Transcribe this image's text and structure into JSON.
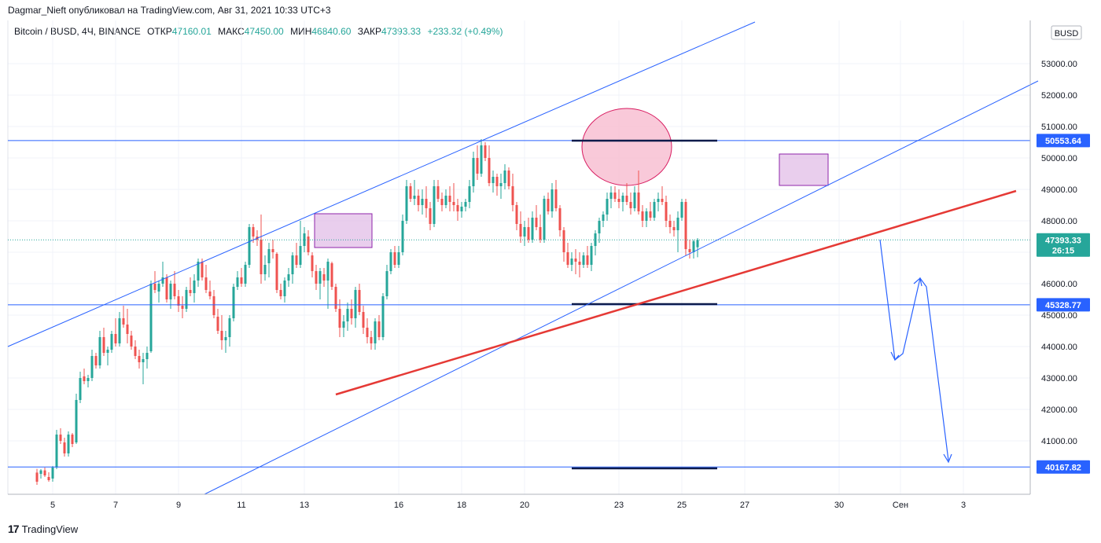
{
  "header": {
    "published_line": "Dagmar_Nieft опубликовал на TradingView.com, Авг 31, 2021 10:33 UTC+3"
  },
  "legend": {
    "symbol": "Bitcoin / BUSD, 4Ч, BINANCE",
    "open_label": "ОТКР",
    "open_value": "47160.01",
    "high_label": "МАКС",
    "high_value": "47450.00",
    "low_label": "МИН",
    "low_value": "46840.60",
    "close_label": "ЗАКР",
    "close_value": "47393.33",
    "change": "+233.32 (+0.49%)"
  },
  "currency_badge": "BUSD",
  "footer": {
    "logo_text": "TradingView"
  },
  "colors": {
    "up": "#26a69a",
    "down": "#ef5350",
    "blue": "#2962ff",
    "red_line": "#e53935",
    "pink": "#f8bbd0",
    "violet": "#e1bee7"
  },
  "chart_data": {
    "type": "candlestick",
    "y_axis_labels": [
      "53000.00",
      "52000.00",
      "51000.00",
      "50000.00",
      "49000.00",
      "48000.00",
      "47000.00",
      "46000.00",
      "45000.00",
      "44000.00",
      "43000.00",
      "42000.00",
      "41000.00"
    ],
    "ylim": [
      39700,
      54000
    ],
    "x_axis_labels": [
      {
        "label": "5",
        "x": 67
      },
      {
        "label": "7",
        "x": 147
      },
      {
        "label": "9",
        "x": 227
      },
      {
        "label": "11",
        "x": 307
      },
      {
        "label": "13",
        "x": 387
      },
      {
        "label": "16",
        "x": 507
      },
      {
        "label": "18",
        "x": 587
      },
      {
        "label": "20",
        "x": 667
      },
      {
        "label": "23",
        "x": 787
      },
      {
        "label": "25",
        "x": 867
      },
      {
        "label": "27",
        "x": 947
      },
      {
        "label": "30",
        "x": 1067
      },
      {
        "label": "Сен",
        "x": 1145
      },
      {
        "label": "3",
        "x": 1225
      }
    ],
    "price_tags": [
      {
        "value": "50553.64",
        "price": 50553.64,
        "color": "#2962ff"
      },
      {
        "value": "47393.33",
        "price": 47393.33,
        "color": "#26a69a",
        "sub": "26:15"
      },
      {
        "value": "45328.77",
        "price": 45328.77,
        "color": "#2962ff"
      },
      {
        "value": "40167.82",
        "price": 40167.82,
        "color": "#2962ff"
      }
    ],
    "horizontal_levels": [
      50553.64,
      45328.77,
      40167.82
    ],
    "current_price": 47393.33,
    "candles": [
      [
        39990,
        40110,
        39600,
        39700
      ],
      [
        39950,
        40100,
        39800,
        40060
      ],
      [
        40060,
        40150,
        39850,
        39900
      ],
      [
        39850,
        40000,
        39700,
        39750
      ],
      [
        39800,
        40200,
        39700,
        40150
      ],
      [
        40150,
        41350,
        40100,
        41200
      ],
      [
        41200,
        41400,
        40900,
        41000
      ],
      [
        40950,
        41100,
        40500,
        40600
      ],
      [
        40600,
        41300,
        40500,
        41200
      ],
      [
        41200,
        41250,
        40800,
        40900
      ],
      [
        40950,
        42500,
        40900,
        42300
      ],
      [
        42300,
        43200,
        42200,
        43000
      ],
      [
        43050,
        43300,
        42800,
        42900
      ],
      [
        42900,
        43100,
        42700,
        43000
      ],
      [
        43000,
        43900,
        42900,
        43700
      ],
      [
        43700,
        43800,
        43300,
        43400
      ],
      [
        43400,
        44500,
        43300,
        44300
      ],
      [
        44300,
        44600,
        43700,
        43800
      ],
      [
        43800,
        44000,
        43400,
        43900
      ],
      [
        43900,
        44500,
        43800,
        44400
      ],
      [
        44400,
        44900,
        44000,
        44100
      ],
      [
        44100,
        45100,
        44000,
        44900
      ],
      [
        44900,
        45300,
        44600,
        44700
      ],
      [
        44700,
        45200,
        44100,
        44400
      ],
      [
        44350,
        44500,
        43900,
        44000
      ],
      [
        44000,
        44200,
        43600,
        43700
      ],
      [
        43700,
        43900,
        43300,
        43500
      ],
      [
        43500,
        43800,
        42800,
        43600
      ],
      [
        43600,
        44000,
        43300,
        43800
      ],
      [
        43850,
        46100,
        43800,
        46000
      ],
      [
        46000,
        46400,
        45700,
        45800
      ],
      [
        45750,
        46100,
        45400,
        46000
      ],
      [
        46000,
        46700,
        45900,
        46200
      ],
      [
        46200,
        46300,
        45400,
        45500
      ],
      [
        45500,
        46100,
        45200,
        46000
      ],
      [
        46000,
        46400,
        45500,
        45600
      ],
      [
        45600,
        45800,
        45100,
        45300
      ],
      [
        45300,
        45600,
        44900,
        45200
      ],
      [
        45200,
        45900,
        45100,
        45800
      ],
      [
        45800,
        46200,
        45600,
        45700
      ],
      [
        45700,
        46300,
        45400,
        46100
      ],
      [
        46100,
        46800,
        45900,
        46700
      ],
      [
        46700,
        46800,
        46100,
        46200
      ],
      [
        46200,
        46600,
        45700,
        45800
      ],
      [
        45750,
        46100,
        45500,
        45600
      ],
      [
        45600,
        45800,
        44900,
        45000
      ],
      [
        44950,
        45200,
        44400,
        44500
      ],
      [
        44500,
        45000,
        43900,
        44200
      ],
      [
        44200,
        44500,
        43800,
        44300
      ],
      [
        44300,
        45000,
        44000,
        44900
      ],
      [
        44900,
        46000,
        44800,
        45900
      ],
      [
        45900,
        46400,
        45800,
        46200
      ],
      [
        46200,
        46500,
        45900,
        46000
      ],
      [
        46000,
        46700,
        45900,
        46600
      ],
      [
        46600,
        47900,
        46500,
        47800
      ],
      [
        47800,
        47900,
        47300,
        47500
      ],
      [
        47500,
        47700,
        47200,
        47400
      ],
      [
        47400,
        48200,
        46000,
        46300
      ],
      [
        46300,
        46900,
        46100,
        46600
      ],
      [
        46650,
        47300,
        46200,
        47100
      ],
      [
        47100,
        47400,
        46800,
        47000
      ],
      [
        46950,
        47000,
        45700,
        45800
      ],
      [
        45800,
        46000,
        45500,
        45600
      ],
      [
        45600,
        46200,
        45400,
        46100
      ],
      [
        46100,
        46500,
        45900,
        46300
      ],
      [
        46300,
        47000,
        46000,
        46900
      ],
      [
        46900,
        47300,
        46500,
        46600
      ],
      [
        46600,
        48000,
        46500,
        47200
      ],
      [
        47200,
        47800,
        47000,
        47600
      ],
      [
        47500,
        47700,
        46900,
        47000
      ],
      [
        46900,
        47000,
        46200,
        46400
      ],
      [
        46400,
        46600,
        45800,
        46000
      ],
      [
        46000,
        46500,
        45500,
        46400
      ],
      [
        46300,
        46500,
        45900,
        46100
      ],
      [
        46100,
        46800,
        45200,
        46700
      ],
      [
        46650,
        46700,
        45800,
        45900
      ],
      [
        45900,
        46000,
        45100,
        45200
      ],
      [
        45200,
        45500,
        44300,
        44600
      ],
      [
        44600,
        45000,
        44300,
        44800
      ],
      [
        44800,
        45400,
        44500,
        45200
      ],
      [
        45200,
        45500,
        44700,
        44900
      ],
      [
        44900,
        45900,
        44600,
        45800
      ],
      [
        45800,
        46000,
        45000,
        45100
      ],
      [
        45100,
        45300,
        44400,
        44600
      ],
      [
        44600,
        44900,
        44100,
        44300
      ],
      [
        44300,
        44500,
        43900,
        44100
      ],
      [
        44100,
        44900,
        43900,
        44800
      ],
      [
        44800,
        45000,
        44200,
        44300
      ],
      [
        44300,
        45700,
        44200,
        45600
      ],
      [
        45600,
        46600,
        45500,
        46400
      ],
      [
        46400,
        47100,
        46300,
        47000
      ],
      [
        47000,
        47200,
        46500,
        46600
      ],
      [
        46600,
        47200,
        46500,
        47000
      ],
      [
        47000,
        48200,
        46900,
        48000
      ],
      [
        48000,
        49300,
        47900,
        49100
      ],
      [
        49100,
        49200,
        48600,
        48700
      ],
      [
        48700,
        49300,
        48500,
        48800
      ],
      [
        48800,
        49000,
        48300,
        48500
      ],
      [
        48500,
        49000,
        48200,
        48700
      ],
      [
        48700,
        49100,
        48100,
        48400
      ],
      [
        48400,
        48600,
        47700,
        47900
      ],
      [
        47900,
        49300,
        47800,
        49100
      ],
      [
        49100,
        49300,
        48600,
        48700
      ],
      [
        48700,
        48900,
        48300,
        48500
      ],
      [
        48500,
        49000,
        48400,
        48800
      ],
      [
        48800,
        49100,
        48300,
        48600
      ],
      [
        48600,
        49200,
        48300,
        48500
      ],
      [
        48500,
        48700,
        48000,
        48300
      ],
      [
        48300,
        48600,
        48100,
        48450
      ],
      [
        48450,
        48700,
        48300,
        48600
      ],
      [
        48600,
        49300,
        48400,
        49100
      ],
      [
        49100,
        50200,
        48900,
        50000
      ],
      [
        50000,
        50400,
        49300,
        49500
      ],
      [
        49500,
        50600,
        49400,
        50400
      ],
      [
        50400,
        50500,
        49900,
        50000
      ],
      [
        50000,
        50400,
        49100,
        49200
      ],
      [
        49200,
        49600,
        48900,
        49400
      ],
      [
        49400,
        49500,
        48800,
        49100
      ],
      [
        49100,
        49500,
        48700,
        49200
      ],
      [
        49200,
        49800,
        49000,
        49600
      ],
      [
        49600,
        49700,
        49000,
        49100
      ],
      [
        49100,
        49500,
        48300,
        48500
      ],
      [
        48500,
        48600,
        47700,
        47900
      ],
      [
        47900,
        48300,
        47300,
        47500
      ],
      [
        47500,
        48000,
        47200,
        47800
      ],
      [
        47800,
        48100,
        47300,
        47400
      ],
      [
        47400,
        48300,
        47300,
        48100
      ],
      [
        48100,
        48500,
        47700,
        47800
      ],
      [
        47800,
        48200,
        47300,
        47400
      ],
      [
        47400,
        48800,
        47300,
        48700
      ],
      [
        48700,
        48900,
        48200,
        48300
      ],
      [
        48300,
        49200,
        48100,
        49000
      ],
      [
        49000,
        49300,
        48300,
        48400
      ],
      [
        48400,
        48500,
        47500,
        47700
      ],
      [
        47700,
        47800,
        46700,
        47000
      ],
      [
        47000,
        47300,
        46500,
        46600
      ],
      [
        46600,
        47000,
        46400,
        46800
      ],
      [
        46800,
        47100,
        46300,
        46700
      ],
      [
        46700,
        47000,
        46200,
        46600
      ],
      [
        46600,
        47000,
        46500,
        46900
      ],
      [
        46900,
        47200,
        46500,
        46600
      ],
      [
        46600,
        47300,
        46400,
        47200
      ],
      [
        47200,
        47700,
        46900,
        47600
      ],
      [
        47600,
        48100,
        47300,
        48000
      ],
      [
        48000,
        48300,
        47800,
        48200
      ],
      [
        48200,
        48900,
        48000,
        48700
      ],
      [
        48700,
        49100,
        48400,
        48900
      ],
      [
        48900,
        49100,
        48600,
        48700
      ],
      [
        48700,
        49000,
        48400,
        48600
      ],
      [
        48600,
        48900,
        48300,
        48800
      ],
      [
        48800,
        49200,
        48500,
        48600
      ],
      [
        48600,
        48900,
        48200,
        48400
      ],
      [
        48400,
        49100,
        48300,
        48900
      ],
      [
        48900,
        49600,
        48200,
        48300
      ],
      [
        48300,
        48500,
        47800,
        48000
      ],
      [
        48000,
        48400,
        47800,
        48300
      ],
      [
        48300,
        48600,
        48000,
        48100
      ],
      [
        48100,
        48700,
        48000,
        48600
      ],
      [
        48600,
        48900,
        48300,
        48700
      ],
      [
        48700,
        49100,
        48500,
        48600
      ],
      [
        48600,
        48800,
        47800,
        48000
      ],
      [
        48000,
        48200,
        47600,
        47800
      ],
      [
        47800,
        48000,
        47500,
        47700
      ],
      [
        47700,
        48300,
        47000,
        48100
      ],
      [
        48100,
        48700,
        48000,
        48600
      ],
      [
        48600,
        48700,
        46900,
        47100
      ],
      [
        47100,
        47400,
        46800,
        47000
      ],
      [
        47000,
        47400,
        46800,
        47350
      ],
      [
        47160,
        47450,
        46840,
        47393
      ]
    ]
  }
}
